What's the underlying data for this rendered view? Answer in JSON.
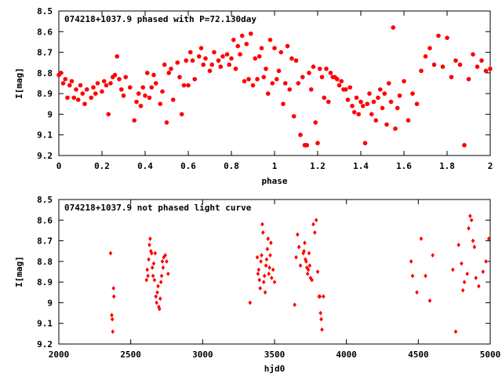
{
  "chart_data": [
    {
      "type": "scatter",
      "title": "074218+1037.9 phased with P=72.130day",
      "xlabel": "phase",
      "ylabel": "I[mag]",
      "xlim": [
        0,
        2
      ],
      "ylim": [
        8.5,
        9.2
      ],
      "y_inverted": true,
      "grid": false,
      "x_ticks": [
        "0",
        "0.2",
        "0.4",
        "0.6",
        "0.8",
        "1",
        "1.2",
        "1.4",
        "1.6",
        "1.8",
        "2"
      ],
      "y_ticks": [
        "8.5",
        "8.6",
        "8.7",
        "8.8",
        "8.9",
        "9",
        "9.1",
        "9.2"
      ],
      "marker_color": "#ff0000",
      "series": [
        {
          "x": [
            0.0,
            0.01,
            0.02,
            0.03,
            0.04,
            0.05,
            0.06,
            0.07,
            0.08,
            0.09,
            0.1,
            0.11,
            0.12,
            0.13,
            0.15,
            0.16,
            0.17,
            0.18,
            0.2,
            0.21,
            0.22,
            0.23,
            0.24,
            0.25,
            0.26,
            0.27,
            0.28,
            0.29,
            0.3,
            0.31,
            0.33,
            0.35,
            0.36,
            0.37,
            0.38,
            0.39,
            0.4,
            0.41,
            0.42,
            0.43,
            0.44,
            0.45,
            0.47,
            0.48,
            0.49,
            0.5,
            0.51,
            0.52,
            0.53,
            0.55,
            0.56,
            0.57,
            0.58,
            0.59,
            0.6,
            0.61,
            0.62,
            0.63,
            0.65,
            0.66,
            0.67,
            0.68,
            0.7,
            0.71,
            0.72,
            0.74,
            0.75,
            0.76,
            0.78,
            0.79,
            0.8,
            0.81,
            0.82,
            0.83,
            0.84,
            0.85,
            0.86,
            0.87,
            0.88,
            0.89,
            0.9,
            0.91,
            0.92,
            0.93,
            0.94,
            0.95,
            0.96,
            0.97,
            0.98,
            0.99,
            1.0,
            1.01,
            1.02,
            1.03,
            1.04,
            1.05,
            1.06,
            1.07,
            1.08,
            1.09,
            1.1,
            1.11,
            1.12,
            1.13,
            1.14,
            1.15,
            1.16,
            1.17,
            1.18,
            1.19,
            1.2,
            1.21,
            1.22,
            1.23,
            1.24,
            1.25,
            1.26,
            1.27,
            1.28,
            1.29,
            1.3,
            1.31,
            1.32,
            1.33,
            1.34,
            1.35,
            1.36,
            1.37,
            1.38,
            1.39,
            1.4,
            1.41,
            1.42,
            1.43,
            1.44,
            1.45,
            1.46,
            1.47,
            1.48,
            1.49,
            1.5,
            1.51,
            1.52,
            1.53,
            1.54,
            1.55,
            1.56,
            1.57,
            1.58,
            1.6,
            1.62,
            1.64,
            1.66,
            1.68,
            1.7,
            1.72,
            1.74,
            1.76,
            1.78,
            1.8,
            1.82,
            1.84,
            1.86,
            1.88,
            1.9,
            1.92,
            1.94,
            1.96,
            1.98,
            2.0
          ],
          "y": [
            8.81,
            8.8,
            8.85,
            8.83,
            8.92,
            8.86,
            8.84,
            8.92,
            8.88,
            8.93,
            8.86,
            8.9,
            8.95,
            8.88,
            8.92,
            8.87,
            8.9,
            8.85,
            8.89,
            8.84,
            8.86,
            9.0,
            8.85,
            8.82,
            8.81,
            8.72,
            8.83,
            8.88,
            8.91,
            8.82,
            8.87,
            9.03,
            8.94,
            8.9,
            8.96,
            8.87,
            8.91,
            8.8,
            8.92,
            8.87,
            8.81,
            8.85,
            8.95,
            8.89,
            8.76,
            9.04,
            8.8,
            8.78,
            8.93,
            8.75,
            8.82,
            9.0,
            8.86,
            8.74,
            8.86,
            8.7,
            8.74,
            8.83,
            8.72,
            8.68,
            8.76,
            8.73,
            8.79,
            8.76,
            8.7,
            8.74,
            8.77,
            8.72,
            8.71,
            8.76,
            8.73,
            8.64,
            8.78,
            8.67,
            8.71,
            8.62,
            8.84,
            8.66,
            8.83,
            8.61,
            8.86,
            8.73,
            8.83,
            8.72,
            8.68,
            8.82,
            8.78,
            8.9,
            8.64,
            8.85,
            8.68,
            8.83,
            8.79,
            8.7,
            8.95,
            8.85,
            8.67,
            8.88,
            8.73,
            9.01,
            8.74,
            8.85,
            9.1,
            8.82,
            9.15,
            9.15,
            8.8,
            8.88,
            8.77,
            9.04,
            9.14,
            8.78,
            8.82,
            8.92,
            8.78,
            8.94,
            8.8,
            8.82,
            8.82,
            8.83,
            8.86,
            8.84,
            8.88,
            8.88,
            8.93,
            8.87,
            8.96,
            8.99,
            8.92,
            9.0,
            8.94,
            8.96,
            9.14,
            8.95,
            8.9,
            9.0,
            8.94,
            9.03,
            8.92,
            8.88,
            8.97,
            8.9,
            9.05,
            8.85,
            8.94,
            8.58,
            9.07,
            8.97,
            8.91,
            8.84,
            9.03,
            8.9,
            8.95,
            8.79,
            8.72,
            8.68,
            8.76,
            8.62,
            8.77,
            8.63,
            8.82,
            8.74,
            8.76,
            9.15,
            8.83,
            8.71,
            8.77,
            8.74,
            8.79,
            8.78
          ]
        }
      ]
    },
    {
      "type": "scatter",
      "title": "074218+1037.9 not phased light curve",
      "xlabel": "hjd0",
      "ylabel": "I[mag]",
      "xlim": [
        2000,
        5000
      ],
      "ylim": [
        8.5,
        9.2
      ],
      "y_inverted": true,
      "grid": false,
      "x_ticks": [
        "2000",
        "2500",
        "3000",
        "3500",
        "4000",
        "4500",
        "5000"
      ],
      "y_ticks": [
        "8.5",
        "8.6",
        "8.7",
        "8.8",
        "8.9",
        "9",
        "9.1",
        "9.2"
      ],
      "marker_color": "#ff0000",
      "series": [
        {
          "x": [
            2360,
            2368,
            2372,
            2375,
            2380,
            2383,
            2610,
            2615,
            2620,
            2625,
            2630,
            2635,
            2640,
            2645,
            2650,
            2655,
            2660,
            2665,
            2670,
            2675,
            2680,
            2685,
            2690,
            2695,
            2700,
            2705,
            2710,
            2715,
            2720,
            2725,
            2730,
            2740,
            2750,
            2760,
            3330,
            3380,
            3385,
            3390,
            3395,
            3400,
            3405,
            3410,
            3415,
            3420,
            3425,
            3430,
            3435,
            3440,
            3445,
            3450,
            3455,
            3460,
            3465,
            3470,
            3475,
            3480,
            3490,
            3500,
            3640,
            3650,
            3660,
            3670,
            3680,
            3700,
            3705,
            3710,
            3715,
            3720,
            3725,
            3730,
            3735,
            3740,
            3745,
            3750,
            3760,
            3770,
            3780,
            3790,
            3800,
            3810,
            3815,
            3820,
            3825,
            3830,
            3840,
            4450,
            4460,
            4490,
            4520,
            4550,
            4580,
            4600,
            4740,
            4760,
            4780,
            4800,
            4810,
            4820,
            4840,
            4850,
            4860,
            4870,
            4880,
            4890,
            4900,
            4920,
            4950,
            4970,
            4990
          ],
          "y": [
            8.76,
            9.06,
            9.08,
            9.14,
            8.93,
            8.97,
            8.89,
            8.84,
            8.87,
            8.79,
            8.72,
            8.69,
            8.75,
            8.76,
            8.83,
            8.87,
            8.81,
            8.89,
            8.76,
            8.97,
            9.0,
            8.95,
            8.92,
            9.02,
            9.03,
            8.98,
            8.9,
            8.87,
            8.8,
            8.83,
            8.78,
            8.77,
            8.8,
            8.86,
            9.0,
            8.78,
            8.86,
            8.84,
            8.89,
            8.93,
            8.8,
            8.77,
            8.62,
            8.66,
            8.9,
            8.87,
            8.95,
            8.82,
            8.79,
            8.74,
            8.69,
            8.86,
            8.83,
            8.77,
            8.71,
            8.88,
            8.84,
            8.9,
            9.01,
            8.78,
            8.67,
            8.73,
            8.82,
            8.76,
            8.75,
            8.71,
            8.79,
            8.8,
            8.83,
            8.86,
            8.84,
            8.76,
            8.82,
            8.88,
            8.89,
            8.62,
            8.66,
            8.6,
            8.85,
            8.97,
            8.97,
            9.05,
            9.08,
            9.13,
            8.97,
            8.8,
            8.87,
            8.95,
            8.69,
            8.87,
            8.99,
            8.77,
            8.84,
            9.14,
            8.72,
            8.81,
            8.94,
            8.9,
            8.86,
            8.64,
            8.58,
            8.6,
            8.7,
            8.73,
            8.88,
            8.92,
            8.85,
            8.8,
            8.69
          ]
        }
      ]
    }
  ]
}
